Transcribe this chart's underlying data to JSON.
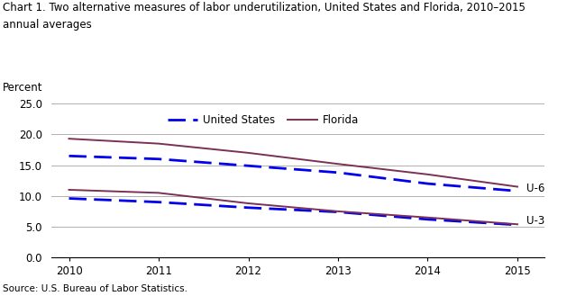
{
  "title_line1": "Chart 1. Two alternative measures of labor underutilization, United States and Florida, 2010–2015",
  "title_line2": "annual averages",
  "ylabel": "Percent",
  "source": "Source: U.S. Bureau of Labor Statistics.",
  "years": [
    2010,
    2011,
    2012,
    2013,
    2014,
    2015
  ],
  "u6_us": [
    16.5,
    16.0,
    14.9,
    13.8,
    12.0,
    10.8
  ],
  "u6_fl": [
    19.3,
    18.5,
    17.0,
    15.2,
    13.5,
    11.5
  ],
  "u3_us": [
    9.6,
    9.0,
    8.1,
    7.4,
    6.2,
    5.3
  ],
  "u3_fl": [
    11.0,
    10.5,
    8.8,
    7.5,
    6.5,
    5.4
  ],
  "us_color": "#0000EE",
  "fl_color": "#7B3055",
  "ylim": [
    0.0,
    25.0
  ],
  "yticks": [
    0.0,
    5.0,
    10.0,
    15.0,
    20.0,
    25.0
  ],
  "xlim": [
    2009.8,
    2015.3
  ],
  "label_u6": "U-6",
  "label_u3": "U-3",
  "legend_us": "United States",
  "legend_fl": "Florida",
  "title_color": "#000000",
  "background_color": "#ffffff",
  "grid_color": "#b0b0b0"
}
